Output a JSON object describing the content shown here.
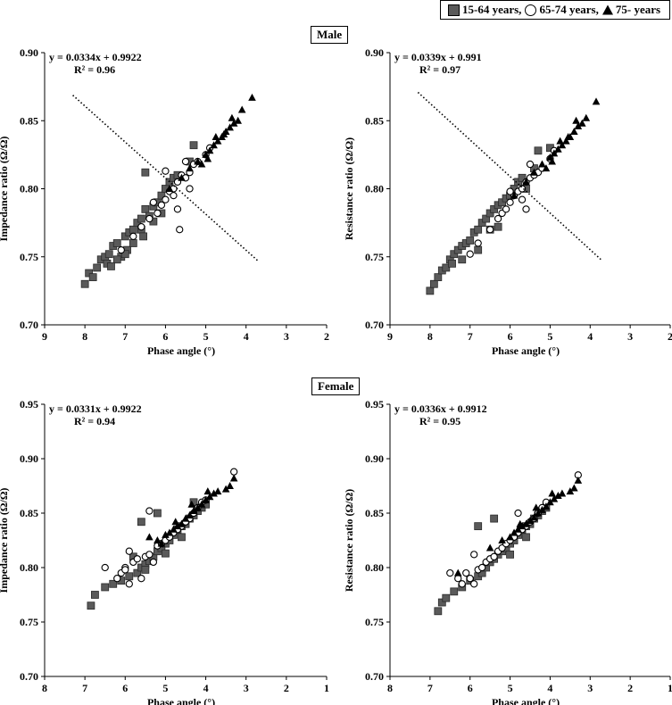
{
  "legend": {
    "items": [
      {
        "label": "15-64 years,",
        "marker": "square",
        "fill": "#5a5a5a"
      },
      {
        "label": "65-74 years,",
        "marker": "circle",
        "fill": "#ffffff"
      },
      {
        "label": "75- years",
        "marker": "triangle",
        "fill": "#000000"
      }
    ]
  },
  "sections": {
    "male": "Male",
    "female": "Female"
  },
  "colors": {
    "group1": "#5a5a5a",
    "group2": "#ffffff",
    "group3": "#000000",
    "axis": "#000000"
  },
  "chart_data": [
    {
      "type": "scatter",
      "id": "male-impedance",
      "section": "Male",
      "equation": "y = 0.0334x + 0.9922",
      "r2": "R² = 0.96",
      "slope": 0.0334,
      "intercept": 0.9922,
      "xlabel": "Phase angle (°)",
      "ylabel": "Impedance ratio (Ω/Ω)",
      "xlim": [
        2,
        9
      ],
      "x_reversed": true,
      "ylim": [
        0.7,
        0.9
      ],
      "xticks": [
        9,
        8,
        7,
        6,
        5,
        4,
        3,
        2
      ],
      "yticks": [
        "0.70",
        "0.75",
        "0.80",
        "0.85",
        "0.90"
      ],
      "trendline_x": [
        8.4,
        3.3
      ],
      "series": [
        {
          "name": "15-64 years",
          "marker": "square",
          "x": [
            8.0,
            7.9,
            7.8,
            7.7,
            7.6,
            7.5,
            7.45,
            7.4,
            7.3,
            7.2,
            7.1,
            7.0,
            6.95,
            6.9,
            6.8,
            6.7,
            6.6,
            6.5,
            6.5,
            6.4,
            6.3,
            6.2,
            6.1,
            6.0,
            5.9,
            5.8,
            5.7,
            5.4,
            5.3,
            7.2,
            7.0,
            6.8,
            6.6,
            6.3,
            6.1,
            7.35,
            6.55
          ],
          "y": [
            0.73,
            0.738,
            0.735,
            0.742,
            0.748,
            0.75,
            0.745,
            0.752,
            0.758,
            0.76,
            0.75,
            0.765,
            0.755,
            0.768,
            0.77,
            0.775,
            0.778,
            0.785,
            0.812,
            0.78,
            0.787,
            0.79,
            0.795,
            0.8,
            0.805,
            0.808,
            0.81,
            0.82,
            0.832,
            0.748,
            0.752,
            0.76,
            0.77,
            0.776,
            0.782,
            0.743,
            0.765
          ]
        },
        {
          "name": "65-74 years",
          "marker": "circle",
          "x": [
            7.1,
            6.8,
            6.6,
            6.4,
            6.2,
            6.1,
            6.0,
            5.9,
            5.8,
            5.7,
            5.6,
            5.5,
            5.4,
            5.3,
            5.2,
            5.0,
            4.9,
            6.0,
            5.8,
            5.7,
            5.65,
            5.5,
            5.4,
            6.3
          ],
          "y": [
            0.755,
            0.765,
            0.772,
            0.778,
            0.782,
            0.788,
            0.792,
            0.798,
            0.8,
            0.805,
            0.81,
            0.808,
            0.812,
            0.818,
            0.82,
            0.825,
            0.83,
            0.813,
            0.795,
            0.785,
            0.77,
            0.82,
            0.8,
            0.79
          ]
        },
        {
          "name": "75- years",
          "marker": "triangle",
          "x": [
            5.9,
            5.6,
            5.4,
            5.2,
            5.0,
            4.9,
            4.8,
            4.7,
            4.6,
            4.5,
            4.4,
            4.3,
            4.2,
            4.1,
            3.85,
            5.1,
            4.95,
            4.75,
            4.55,
            4.35
          ],
          "y": [
            0.8,
            0.808,
            0.815,
            0.82,
            0.825,
            0.828,
            0.832,
            0.835,
            0.838,
            0.842,
            0.845,
            0.848,
            0.85,
            0.858,
            0.867,
            0.818,
            0.822,
            0.838,
            0.84,
            0.852
          ]
        }
      ]
    },
    {
      "type": "scatter",
      "id": "male-resistance",
      "section": "Male",
      "equation": "y = 0.0339x + 0.991",
      "r2": "R² = 0.97",
      "slope": 0.0339,
      "intercept": 0.991,
      "xlabel": "Phase angle (°)",
      "ylabel": "Resistance ratio (Ω/Ω)",
      "xlim": [
        2,
        9
      ],
      "x_reversed": true,
      "ylim": [
        0.7,
        0.9
      ],
      "xticks": [
        9,
        8,
        7,
        6,
        5,
        4,
        3,
        2
      ],
      "yticks": [
        "0.70",
        "0.75",
        "0.80",
        "0.85",
        "0.90"
      ],
      "trendline_x": [
        8.4,
        3.3
      ],
      "series": [
        {
          "name": "15-64 years",
          "marker": "square",
          "x": [
            8.0,
            7.9,
            7.8,
            7.7,
            7.6,
            7.5,
            7.4,
            7.3,
            7.2,
            7.1,
            7.0,
            6.9,
            6.8,
            6.7,
            6.6,
            6.5,
            6.4,
            6.3,
            6.2,
            6.1,
            6.0,
            5.9,
            5.8,
            5.7,
            5.4,
            5.3,
            6.5,
            7.2,
            6.8,
            6.3,
            5.6,
            5.0,
            7.45
          ],
          "y": [
            0.725,
            0.73,
            0.735,
            0.74,
            0.742,
            0.748,
            0.752,
            0.755,
            0.758,
            0.76,
            0.762,
            0.768,
            0.77,
            0.775,
            0.778,
            0.782,
            0.785,
            0.788,
            0.79,
            0.793,
            0.795,
            0.8,
            0.805,
            0.808,
            0.815,
            0.828,
            0.77,
            0.748,
            0.755,
            0.772,
            0.8,
            0.83,
            0.745
          ]
        },
        {
          "name": "65-74 years",
          "marker": "circle",
          "x": [
            7.0,
            6.8,
            6.5,
            6.3,
            6.2,
            6.1,
            6.0,
            5.9,
            5.8,
            5.7,
            5.6,
            5.5,
            5.4,
            5.3,
            5.2,
            5.0,
            4.9,
            6.0,
            5.7,
            5.6,
            5.5
          ],
          "y": [
            0.752,
            0.76,
            0.77,
            0.778,
            0.782,
            0.785,
            0.79,
            0.795,
            0.798,
            0.8,
            0.805,
            0.808,
            0.81,
            0.812,
            0.815,
            0.822,
            0.828,
            0.798,
            0.792,
            0.785,
            0.818
          ]
        },
        {
          "name": "75- years",
          "marker": "triangle",
          "x": [
            5.9,
            5.6,
            5.4,
            5.2,
            5.0,
            4.9,
            4.8,
            4.7,
            4.6,
            4.5,
            4.4,
            4.3,
            4.2,
            4.1,
            3.85,
            5.1,
            4.95,
            4.75,
            4.55,
            4.35
          ],
          "y": [
            0.795,
            0.805,
            0.812,
            0.818,
            0.823,
            0.826,
            0.829,
            0.832,
            0.835,
            0.838,
            0.842,
            0.846,
            0.848,
            0.852,
            0.864,
            0.815,
            0.82,
            0.835,
            0.838,
            0.85
          ]
        }
      ]
    },
    {
      "type": "scatter",
      "id": "female-impedance",
      "section": "Female",
      "equation": "y = 0.0331x + 0.9922",
      "r2": "R² = 0.94",
      "slope": 0.0331,
      "intercept": 0.9922,
      "xlabel": "Phase angle (°)",
      "ylabel": "Impedance ratio (Ω/Ω)",
      "xlim": [
        1,
        8
      ],
      "x_reversed": true,
      "ylim": [
        0.7,
        0.95
      ],
      "xticks": [
        8,
        7,
        6,
        5,
        4,
        3,
        2,
        1
      ],
      "yticks": [
        "0.70",
        "0.75",
        "0.80",
        "0.85",
        "0.90",
        "0.95"
      ],
      "trendline_x": [
        7.3,
        2.7
      ],
      "series": [
        {
          "name": "15-64 years",
          "marker": "square",
          "x": [
            6.85,
            6.75,
            6.5,
            6.3,
            6.1,
            5.9,
            5.7,
            5.6,
            5.5,
            5.4,
            5.3,
            5.2,
            5.1,
            5.0,
            4.9,
            4.8,
            4.7,
            4.6,
            4.5,
            4.4,
            4.3,
            4.2,
            4.1,
            4.0,
            5.6,
            5.2,
            5.8,
            5.5,
            5.0,
            4.6,
            4.3
          ],
          "y": [
            0.765,
            0.775,
            0.782,
            0.785,
            0.788,
            0.792,
            0.795,
            0.8,
            0.803,
            0.806,
            0.81,
            0.815,
            0.818,
            0.822,
            0.825,
            0.83,
            0.835,
            0.838,
            0.84,
            0.845,
            0.848,
            0.852,
            0.855,
            0.858,
            0.842,
            0.85,
            0.81,
            0.798,
            0.813,
            0.828,
            0.86
          ]
        },
        {
          "name": "65-74 years",
          "marker": "circle",
          "x": [
            6.5,
            6.2,
            6.1,
            6.0,
            5.9,
            5.8,
            5.7,
            5.6,
            5.5,
            5.4,
            5.3,
            5.2,
            5.1,
            5.0,
            4.9,
            4.8,
            4.7,
            4.6,
            4.5,
            4.4,
            4.3,
            4.2,
            4.1,
            4.0,
            3.3,
            5.9,
            5.4,
            6.0
          ],
          "y": [
            0.8,
            0.79,
            0.795,
            0.8,
            0.815,
            0.805,
            0.808,
            0.79,
            0.81,
            0.812,
            0.805,
            0.82,
            0.822,
            0.825,
            0.828,
            0.832,
            0.835,
            0.838,
            0.842,
            0.845,
            0.85,
            0.855,
            0.86,
            0.862,
            0.888,
            0.785,
            0.852,
            0.798
          ]
        },
        {
          "name": "75- years",
          "marker": "triangle",
          "x": [
            5.4,
            5.2,
            5.0,
            4.9,
            4.8,
            4.7,
            4.6,
            4.5,
            4.4,
            4.3,
            4.2,
            4.1,
            4.0,
            3.9,
            3.8,
            3.7,
            3.5,
            3.4,
            3.3,
            5.1,
            4.75,
            4.35,
            3.95
          ],
          "y": [
            0.828,
            0.825,
            0.83,
            0.832,
            0.835,
            0.838,
            0.84,
            0.845,
            0.848,
            0.852,
            0.855,
            0.858,
            0.862,
            0.865,
            0.868,
            0.87,
            0.872,
            0.875,
            0.882,
            0.822,
            0.842,
            0.858,
            0.87
          ]
        }
      ]
    },
    {
      "type": "scatter",
      "id": "female-resistance",
      "section": "Female",
      "equation": "y = 0.0336x + 0.9912",
      "r2": "R² = 0.95",
      "slope": 0.0336,
      "intercept": 0.9912,
      "xlabel": "Phase angle (°)",
      "ylabel": "Resistance ratio (Ω/Ω)",
      "xlim": [
        1,
        8
      ],
      "x_reversed": true,
      "ylim": [
        0.7,
        0.95
      ],
      "xticks": [
        8,
        7,
        6,
        5,
        4,
        3,
        2,
        1
      ],
      "yticks": [
        "0.70",
        "0.75",
        "0.80",
        "0.85",
        "0.90",
        "0.95"
      ],
      "trendline_x": [
        7.3,
        2.7
      ],
      "series": [
        {
          "name": "15-64 years",
          "marker": "square",
          "x": [
            6.8,
            6.7,
            6.6,
            6.4,
            6.2,
            6.0,
            5.8,
            5.7,
            5.6,
            5.5,
            5.4,
            5.3,
            5.2,
            5.1,
            5.0,
            4.9,
            4.8,
            4.7,
            4.6,
            4.5,
            4.4,
            4.3,
            4.2,
            4.1,
            5.8,
            5.4,
            5.0,
            4.6
          ],
          "y": [
            0.76,
            0.768,
            0.772,
            0.778,
            0.782,
            0.788,
            0.792,
            0.795,
            0.8,
            0.805,
            0.808,
            0.812,
            0.815,
            0.818,
            0.822,
            0.825,
            0.83,
            0.835,
            0.838,
            0.84,
            0.845,
            0.848,
            0.852,
            0.855,
            0.838,
            0.845,
            0.812,
            0.828
          ]
        },
        {
          "name": "65-74 years",
          "marker": "circle",
          "x": [
            6.5,
            6.3,
            6.2,
            6.0,
            5.9,
            5.8,
            5.7,
            5.6,
            5.5,
            5.4,
            5.3,
            5.2,
            5.1,
            5.0,
            4.9,
            4.8,
            4.7,
            4.6,
            4.5,
            4.4,
            4.3,
            4.2,
            4.1,
            3.3,
            4.8,
            5.9,
            6.1
          ],
          "y": [
            0.795,
            0.79,
            0.785,
            0.79,
            0.812,
            0.798,
            0.8,
            0.805,
            0.808,
            0.81,
            0.815,
            0.818,
            0.822,
            0.825,
            0.828,
            0.832,
            0.835,
            0.838,
            0.842,
            0.845,
            0.85,
            0.855,
            0.86,
            0.885,
            0.85,
            0.785,
            0.795
          ]
        },
        {
          "name": "75- years",
          "marker": "triangle",
          "x": [
            6.3,
            5.2,
            5.0,
            4.9,
            4.8,
            4.7,
            4.6,
            4.5,
            4.4,
            4.3,
            4.2,
            4.1,
            4.0,
            3.9,
            3.8,
            3.7,
            3.5,
            3.4,
            3.3,
            5.5,
            4.75,
            4.35,
            3.95
          ],
          "y": [
            0.795,
            0.825,
            0.828,
            0.832,
            0.835,
            0.838,
            0.84,
            0.843,
            0.846,
            0.85,
            0.853,
            0.856,
            0.86,
            0.863,
            0.866,
            0.868,
            0.87,
            0.873,
            0.88,
            0.818,
            0.84,
            0.855,
            0.868
          ]
        }
      ]
    }
  ]
}
